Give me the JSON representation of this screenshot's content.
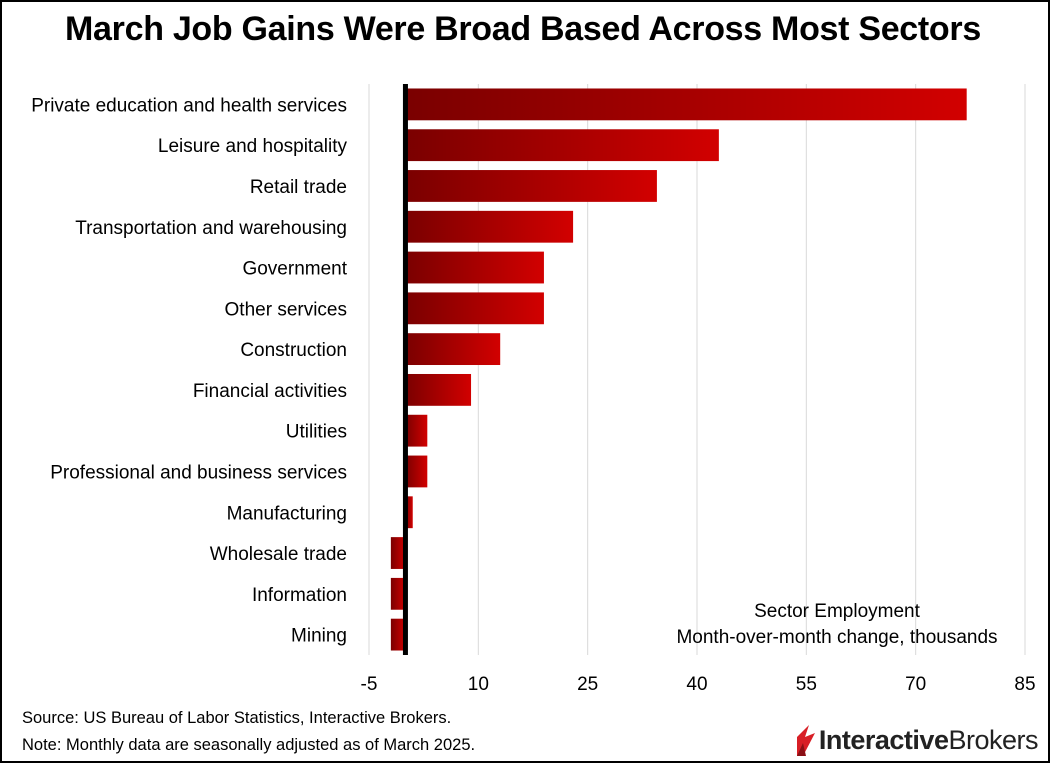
{
  "title": "March Job Gains Were Broad Based Across Most Sectors",
  "source": "Source: US Bureau of Labor Statistics, Interactive Brokers.",
  "note": "Note: Monthly data are seasonally adjusted as of March 2025.",
  "logo": {
    "bold": "Interactive",
    "regular": "Brokers"
  },
  "colors": {
    "bar_dark": "#7a0000",
    "bar_light": "#d20000",
    "zero_line": "#000000",
    "grid": "#d9d9d9"
  },
  "chart_data": {
    "type": "bar",
    "orientation": "horizontal",
    "categories": [
      "Private education and health services",
      "Leisure and hospitality",
      "Retail trade",
      "Transportation and warehousing",
      "Government",
      "Other services",
      "Construction",
      "Financial activities",
      "Utilities",
      "Professional and business services",
      "Manufacturing",
      "Wholesale trade",
      "Information",
      "Mining"
    ],
    "values": [
      77,
      43,
      34.5,
      23,
      19,
      19,
      13,
      9,
      3,
      3,
      1,
      -2,
      -2,
      -2
    ],
    "xlim": [
      -5,
      85
    ],
    "xticks": [
      -5,
      10,
      25,
      40,
      55,
      70,
      85
    ],
    "annotation": [
      "Sector Employment",
      "Month-over-month change, thousands"
    ],
    "grid": true
  }
}
